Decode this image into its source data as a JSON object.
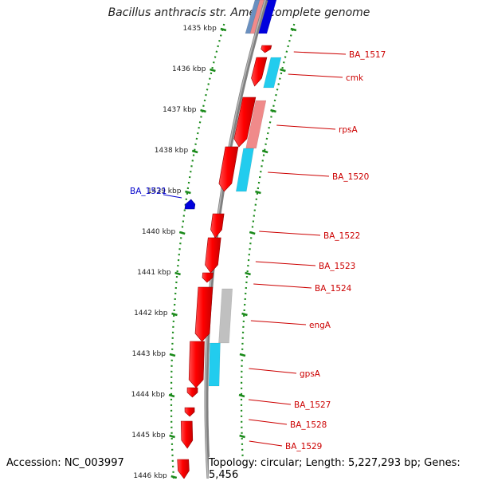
{
  "title": "Bacillus anthracis str. Ames, complete genome",
  "accession": "Accession: NC_003997",
  "topology": "Topology: circular; Length: 5,227,293 bp; Genes: 5,456",
  "ruler": {
    "ticks": [
      "1435 kbp",
      "1436 kbp",
      "1437 kbp",
      "1438 kbp",
      "1439 kbp",
      "1440 kbp",
      "1441 kbp",
      "1442 kbp",
      "1443 kbp",
      "1444 kbp",
      "1445 kbp",
      "1446 kbp"
    ]
  },
  "colors": {
    "gene_red": "#ff0000",
    "backbone": "#808080",
    "ruler_dots": "#1a8a1a",
    "label_red": "#cc0000",
    "label_blue": "#0000cc",
    "cyan": "#22ccee",
    "pink": "#f08a8a",
    "grey_band": "#c0c0c0",
    "blue": "#0000dd"
  },
  "gene_labels": [
    {
      "name": "BA_1517",
      "strand": "reverse"
    },
    {
      "name": "cmk",
      "strand": "reverse"
    },
    {
      "name": "rpsA",
      "strand": "reverse"
    },
    {
      "name": "BA_1520",
      "strand": "reverse"
    },
    {
      "name": "BA_1521",
      "strand": "forward"
    },
    {
      "name": "BA_1522",
      "strand": "reverse"
    },
    {
      "name": "BA_1523",
      "strand": "reverse"
    },
    {
      "name": "BA_1524",
      "strand": "reverse"
    },
    {
      "name": "engA",
      "strand": "reverse"
    },
    {
      "name": "gpsA",
      "strand": "reverse"
    },
    {
      "name": "BA_1527",
      "strand": "reverse"
    },
    {
      "name": "BA_1528",
      "strand": "reverse"
    },
    {
      "name": "BA_1529",
      "strand": "reverse"
    }
  ]
}
